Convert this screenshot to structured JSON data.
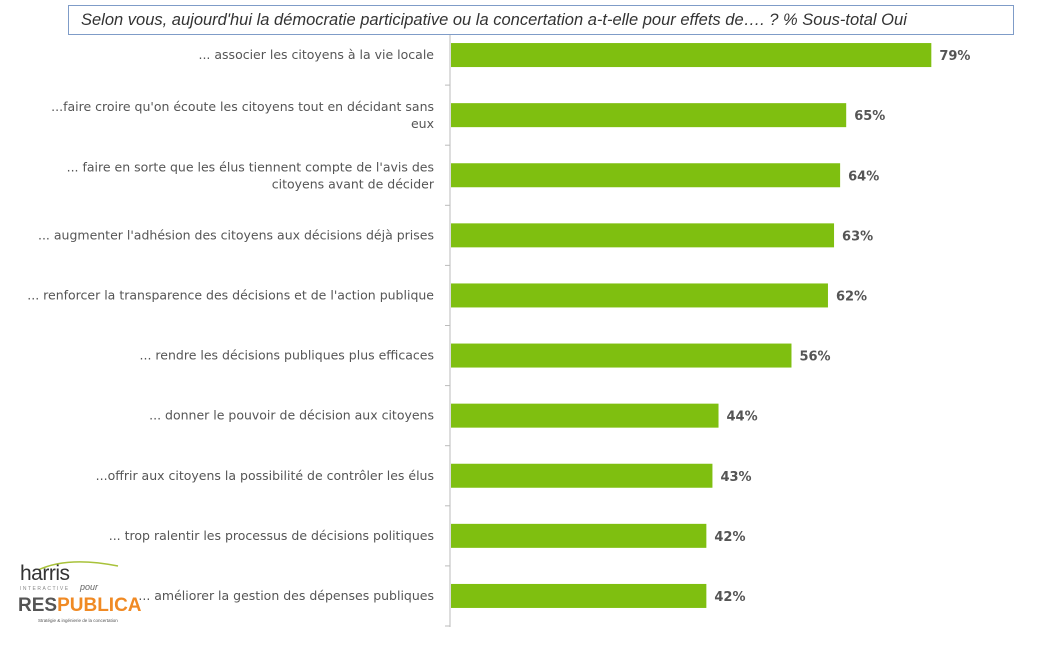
{
  "title": "Selon vous, aujourd'hui la démocratie participative ou la concertation a-t-elle pour effets de…. ? %  Sous-total Oui",
  "chart_data": {
    "type": "bar",
    "orientation": "horizontal",
    "title": "Selon vous, aujourd'hui la démocratie participative ou la concertation a-t-elle pour effets de…. ? %  Sous-total Oui",
    "categories": [
      [
        "... associer les citoyens à la vie locale"
      ],
      [
        "...faire croire qu'on écoute les citoyens tout en décidant sans",
        "eux"
      ],
      [
        "... faire en sorte que les élus tiennent compte de l'avis des",
        "citoyens avant de décider"
      ],
      [
        "... augmenter l'adhésion des citoyens aux décisions déjà prises"
      ],
      [
        "... renforcer la transparence des décisions et de l'action publique"
      ],
      [
        "... rendre les décisions publiques plus efficaces"
      ],
      [
        "... donner le pouvoir de décision aux citoyens"
      ],
      [
        "...offrir aux citoyens la possibilité de contrôler les élus"
      ],
      [
        "... trop ralentir les processus de décisions politiques"
      ],
      [
        "... améliorer la gestion des dépenses publiques"
      ]
    ],
    "values": [
      79,
      65,
      64,
      63,
      62,
      56,
      44,
      43,
      42,
      42
    ],
    "value_labels": [
      "79%",
      "65%",
      "64%",
      "63%",
      "62%",
      "56%",
      "44%",
      "43%",
      "42%",
      "42%"
    ],
    "xlim": [
      0,
      100
    ],
    "bar_color": "#7fbf10",
    "grid": false
  },
  "logo": {
    "harris": "harris",
    "interactive": "INTERACTIVE",
    "pour": "pour",
    "res": "RES",
    "publica": "PUBLICA",
    "tagline": "Stratégie & ingénierie de la concertation"
  }
}
